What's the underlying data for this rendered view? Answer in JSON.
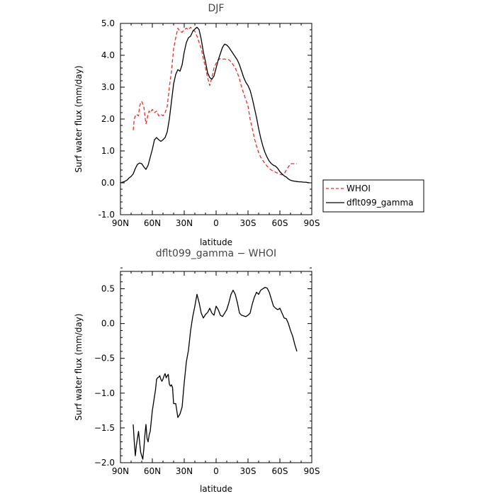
{
  "chart_data": [
    {
      "type": "line",
      "title": "DJF",
      "xlabel": "latitude",
      "ylabel": "Surf water flux (mm/day)",
      "xlim": [
        90,
        -90
      ],
      "ylim": [
        -1.0,
        5.0
      ],
      "xticks": [
        90,
        60,
        30,
        0,
        -30,
        -60,
        -90
      ],
      "xtick_labels": [
        "90N",
        "60N",
        "30N",
        "0",
        "30S",
        "60S",
        "90S"
      ],
      "yticks": [
        -1.0,
        0.0,
        1.0,
        2.0,
        3.0,
        4.0,
        5.0
      ],
      "ytick_labels": [
        "-1.0",
        "0.0",
        "1.0",
        "2.0",
        "3.0",
        "4.0",
        "5.0"
      ],
      "legend": {
        "placement": "right",
        "entries": [
          "WHOI",
          "dflt099_gamma"
        ]
      },
      "series": [
        {
          "name": "WHOI",
          "color": "#e8302a",
          "style": "dashed",
          "x": [
            78,
            77,
            76,
            75,
            73,
            72,
            71,
            70,
            68,
            67,
            66,
            64,
            63,
            62,
            60,
            58,
            56,
            54,
            52,
            50,
            48,
            46,
            44,
            42,
            40,
            38,
            36,
            34,
            32,
            30,
            28,
            26,
            24,
            22,
            20,
            18,
            16,
            14,
            12,
            10,
            8,
            6,
            4,
            2,
            0,
            -2,
            -4,
            -6,
            -8,
            -10,
            -12,
            -14,
            -16,
            -18,
            -20,
            -22,
            -24,
            -26,
            -28,
            -30,
            -32,
            -34,
            -36,
            -38,
            -40,
            -42,
            -44,
            -46,
            -48,
            -50,
            -52,
            -54,
            -56,
            -58,
            -60,
            -62,
            -64,
            -66,
            -68,
            -70,
            -72,
            -74,
            -76
          ],
          "y": [
            1.65,
            2.0,
            2.1,
            2.15,
            2.1,
            2.4,
            2.5,
            2.55,
            2.4,
            2.1,
            1.85,
            2.15,
            2.25,
            2.2,
            2.3,
            2.2,
            2.25,
            2.1,
            2.15,
            2.1,
            2.2,
            2.4,
            3.0,
            3.5,
            4.2,
            4.55,
            4.85,
            4.75,
            4.72,
            4.8,
            4.85,
            4.8,
            4.88,
            4.8,
            4.75,
            4.6,
            4.4,
            4.2,
            3.9,
            3.6,
            3.3,
            3.05,
            3.3,
            3.6,
            3.75,
            3.85,
            3.9,
            3.88,
            3.88,
            3.87,
            3.86,
            3.8,
            3.7,
            3.6,
            3.45,
            3.25,
            3.0,
            2.8,
            2.6,
            2.4,
            2.0,
            1.7,
            1.4,
            1.15,
            0.95,
            0.8,
            0.7,
            0.6,
            0.52,
            0.45,
            0.4,
            0.36,
            0.33,
            0.3,
            0.27,
            0.25,
            0.28,
            0.4,
            0.5,
            0.6,
            0.6,
            0.6,
            0.6
          ]
        },
        {
          "name": "dflt099_gamma",
          "color": "#000000",
          "style": "solid",
          "x": [
            90,
            87,
            84,
            82,
            80,
            78,
            76,
            74,
            72,
            70,
            68,
            66,
            64,
            62,
            60,
            58,
            56,
            54,
            52,
            50,
            48,
            46,
            44,
            42,
            40,
            38,
            36,
            34,
            32,
            30,
            28,
            26,
            24,
            22,
            20,
            18,
            16,
            14,
            12,
            10,
            8,
            6,
            4,
            2,
            0,
            -2,
            -4,
            -6,
            -8,
            -10,
            -12,
            -14,
            -16,
            -18,
            -20,
            -22,
            -24,
            -26,
            -28,
            -30,
            -32,
            -34,
            -36,
            -38,
            -40,
            -42,
            -44,
            -46,
            -48,
            -50,
            -52,
            -54,
            -56,
            -58,
            -60,
            -62,
            -64,
            -66,
            -68,
            -70,
            -72,
            -74,
            -76,
            -78,
            -80,
            -82,
            -84,
            -86,
            -88
          ],
          "y": [
            0.0,
            0.03,
            0.08,
            0.15,
            0.2,
            0.28,
            0.45,
            0.58,
            0.62,
            0.6,
            0.5,
            0.42,
            0.55,
            0.8,
            1.05,
            1.35,
            1.42,
            1.35,
            1.3,
            1.35,
            1.42,
            1.6,
            2.0,
            2.55,
            3.1,
            3.4,
            3.55,
            3.5,
            3.7,
            4.1,
            4.4,
            4.55,
            4.6,
            4.75,
            4.82,
            4.88,
            4.8,
            4.5,
            4.1,
            3.8,
            3.45,
            3.3,
            3.25,
            3.35,
            3.6,
            3.85,
            4.05,
            4.25,
            4.35,
            4.32,
            4.25,
            4.15,
            4.05,
            3.95,
            3.85,
            3.7,
            3.5,
            3.3,
            3.15,
            3.05,
            2.9,
            2.65,
            2.35,
            2.05,
            1.7,
            1.4,
            1.15,
            0.95,
            0.8,
            0.68,
            0.6,
            0.55,
            0.52,
            0.45,
            0.35,
            0.28,
            0.22,
            0.18,
            0.12,
            0.08,
            0.06,
            0.05,
            0.04,
            0.03,
            0.03,
            0.02,
            0.02,
            0.01,
            0.0
          ]
        }
      ]
    },
    {
      "type": "line",
      "title": "dflt099_gamma − WHOI",
      "xlabel": "latitude",
      "ylabel": "Surf water flux (mm/day)",
      "xlim": [
        90,
        -90
      ],
      "ylim": [
        -2.0,
        0.75
      ],
      "xticks": [
        90,
        60,
        30,
        0,
        -30,
        -60,
        -90
      ],
      "xtick_labels": [
        "90N",
        "60N",
        "30N",
        "0",
        "30S",
        "60S",
        "90S"
      ],
      "yticks": [
        -2.0,
        -1.5,
        -1.0,
        -0.5,
        0.0,
        0.5
      ],
      "ytick_labels": [
        "−2.0",
        "−1.5",
        "−1.0",
        "−0.5",
        "0.0",
        "0.5"
      ],
      "series": [
        {
          "color": "#000000",
          "style": "solid",
          "x": [
            78,
            77,
            76,
            75,
            74,
            73,
            72,
            71,
            70,
            69,
            68,
            67,
            66,
            65,
            64,
            63,
            62,
            60,
            58,
            57,
            56,
            55,
            54,
            53,
            52,
            51,
            50,
            49,
            48,
            47,
            46,
            45,
            44,
            43,
            42,
            41,
            40,
            38,
            36,
            34,
            32,
            30,
            28,
            26,
            24,
            22,
            20,
            18,
            16,
            14,
            12,
            10,
            8,
            6,
            4,
            2,
            0,
            -2,
            -4,
            -6,
            -8,
            -10,
            -12,
            -14,
            -16,
            -18,
            -20,
            -22,
            -24,
            -26,
            -28,
            -30,
            -32,
            -34,
            -36,
            -38,
            -40,
            -42,
            -44,
            -46,
            -48,
            -50,
            -52,
            -54,
            -56,
            -58,
            -60,
            -62,
            -64,
            -66,
            -68,
            -70,
            -72,
            -74,
            -76
          ],
          "y": [
            -1.45,
            -1.7,
            -1.9,
            -1.75,
            -1.65,
            -1.55,
            -1.7,
            -1.85,
            -1.9,
            -1.95,
            -1.8,
            -1.6,
            -1.45,
            -1.65,
            -1.7,
            -1.6,
            -1.55,
            -1.25,
            -1.05,
            -0.95,
            -0.8,
            -0.78,
            -0.77,
            -0.75,
            -0.8,
            -0.83,
            -0.8,
            -0.75,
            -0.72,
            -0.78,
            -0.75,
            -0.73,
            -0.87,
            -0.9,
            -0.88,
            -0.92,
            -1.15,
            -1.15,
            -1.35,
            -1.3,
            -1.2,
            -0.85,
            -0.55,
            -0.38,
            -0.1,
            0.1,
            0.25,
            0.42,
            0.3,
            0.15,
            0.08,
            0.13,
            0.16,
            0.22,
            0.15,
            0.12,
            0.25,
            0.2,
            0.12,
            0.1,
            0.15,
            0.2,
            0.3,
            0.42,
            0.48,
            0.42,
            0.3,
            0.15,
            0.12,
            0.11,
            0.1,
            0.12,
            0.15,
            0.28,
            0.38,
            0.45,
            0.42,
            0.48,
            0.5,
            0.52,
            0.51,
            0.45,
            0.35,
            0.25,
            0.22,
            0.2,
            0.22,
            0.15,
            0.08,
            0.07,
            0.0,
            -0.1,
            -0.18,
            -0.3,
            -0.4
          ]
        }
      ]
    }
  ]
}
